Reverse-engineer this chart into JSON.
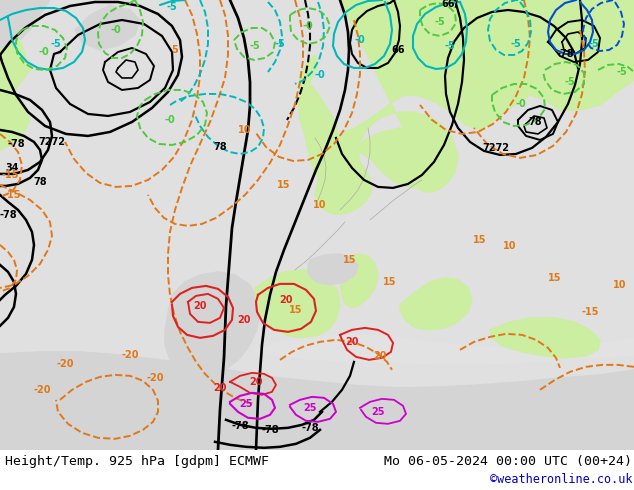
{
  "title_left": "Height/Temp. 925 hPa [gdpm] ECMWF",
  "title_right": "Mo 06-05-2024 00:00 UTC (00+24)",
  "credit": "©weatheronline.co.uk",
  "title_fontsize": 9.5,
  "credit_fontsize": 8.5,
  "credit_color": "#0000cc",
  "fig_width": 6.34,
  "fig_height": 4.9,
  "dpi": 100,
  "map_extent": [
    -30,
    42,
    27,
    72
  ],
  "land_color": "#d8d8d8",
  "sea_color": "#e0e0e8",
  "green_color": "#c8eca0",
  "border_color": "#888888",
  "black": "#000000",
  "orange": "#e07818",
  "cyan": "#00b8b8",
  "green_line": "#50c840",
  "red": "#e02020",
  "magenta": "#cc00cc",
  "blue": "#0050d0"
}
